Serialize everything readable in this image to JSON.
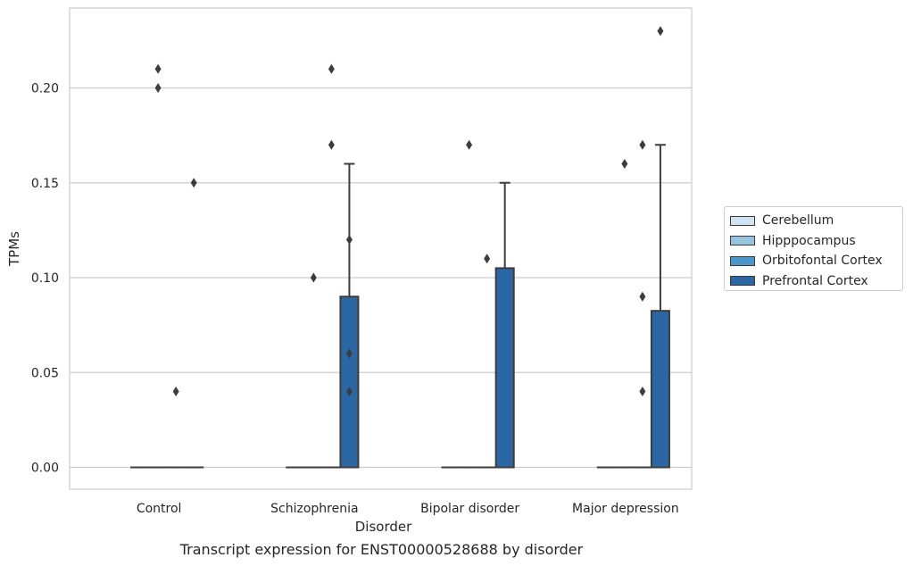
{
  "caption": "Transcript expression for ENST00000528688 by disorder",
  "chart_data": {
    "type": "box",
    "xlabel": "Disorder",
    "ylabel": "TPMs",
    "ylim": [
      -0.011,
      0.242
    ],
    "yticks": [
      0.0,
      0.05,
      0.1,
      0.15,
      0.2
    ],
    "ytick_labels": [
      "0.00",
      "0.05",
      "0.10",
      "0.15",
      "0.20"
    ],
    "grid": "horizontal",
    "categories": [
      "Control",
      "Schizophrenia",
      "Bipolar disorder",
      "Major depression"
    ],
    "legend_position": "right",
    "series": [
      {
        "name": "Cerebellum",
        "color": "#d0e1f2",
        "boxes": [
          {
            "q1": 0,
            "median": 0,
            "q3": 0,
            "whislo": 0,
            "whishi": 0,
            "fliers": []
          },
          {
            "q1": 0,
            "median": 0,
            "q3": 0,
            "whislo": 0,
            "whishi": 0,
            "fliers": []
          },
          {
            "q1": 0,
            "median": 0,
            "q3": 0,
            "whislo": 0,
            "whishi": 0,
            "fliers": []
          },
          {
            "q1": 0,
            "median": 0,
            "q3": 0,
            "whislo": 0,
            "whishi": 0,
            "fliers": []
          }
        ]
      },
      {
        "name": "Hipppocampus",
        "color": "#94c4df",
        "boxes": [
          {
            "q1": 0,
            "median": 0,
            "q3": 0,
            "whislo": 0,
            "whishi": 0,
            "fliers": [
              0.21,
              0.2
            ]
          },
          {
            "q1": 0,
            "median": 0,
            "q3": 0,
            "whislo": 0,
            "whishi": 0,
            "fliers": [
              0.1
            ]
          },
          {
            "q1": 0,
            "median": 0,
            "q3": 0,
            "whislo": 0,
            "whishi": 0,
            "fliers": [
              0.17
            ]
          },
          {
            "q1": 0,
            "median": 0,
            "q3": 0,
            "whislo": 0,
            "whishi": 0,
            "fliers": [
              0.16
            ]
          }
        ]
      },
      {
        "name": "Orbitofontal Cortex",
        "color": "#4a98c9",
        "boxes": [
          {
            "q1": 0,
            "median": 0,
            "q3": 0,
            "whislo": 0,
            "whishi": 0,
            "fliers": [
              0.04
            ]
          },
          {
            "q1": 0,
            "median": 0,
            "q3": 0,
            "whislo": 0,
            "whishi": 0,
            "fliers": [
              0.21,
              0.17
            ]
          },
          {
            "q1": 0,
            "median": 0,
            "q3": 0,
            "whislo": 0,
            "whishi": 0,
            "fliers": [
              0.11
            ]
          },
          {
            "q1": 0,
            "median": 0,
            "q3": 0,
            "whislo": 0,
            "whishi": 0,
            "fliers": [
              0.17,
              0.09,
              0.04
            ]
          }
        ]
      },
      {
        "name": "Prefrontal Cortex",
        "color": "#2b66a5",
        "boxes": [
          {
            "q1": 0,
            "median": 0,
            "q3": 0,
            "whislo": 0,
            "whishi": 0,
            "fliers": [
              0.15
            ]
          },
          {
            "q1": 0,
            "median": 0,
            "q3": 0.09,
            "whislo": 0,
            "whishi": 0.16,
            "fliers": [
              0.12,
              0.06,
              0.04
            ]
          },
          {
            "q1": 0,
            "median": 0,
            "q3": 0.105,
            "whislo": 0,
            "whishi": 0.15,
            "fliers": []
          },
          {
            "q1": 0,
            "median": 0,
            "q3": 0.0825,
            "whislo": 0,
            "whishi": 0.17,
            "fliers": [
              0.23
            ]
          }
        ]
      }
    ]
  }
}
